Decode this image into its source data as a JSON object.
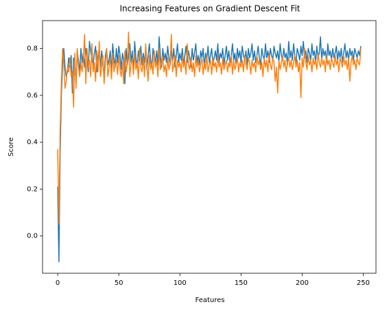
{
  "chart_data": {
    "type": "line",
    "title": "Increasing Features on Gradient Descent Fit",
    "x_label": "Features",
    "y_label": "Score",
    "x": [
      0,
      1,
      2,
      3,
      4,
      5,
      6,
      7,
      8,
      9,
      10,
      11,
      12,
      13,
      14,
      15,
      16,
      17,
      18,
      19,
      20,
      21,
      22,
      23,
      24,
      25,
      26,
      27,
      28,
      29,
      30,
      31,
      32,
      33,
      34,
      35,
      36,
      37,
      38,
      39,
      40,
      41,
      42,
      43,
      44,
      45,
      46,
      47,
      48,
      49,
      50,
      51,
      52,
      53,
      54,
      55,
      56,
      57,
      58,
      59,
      60,
      61,
      62,
      63,
      64,
      65,
      66,
      67,
      68,
      69,
      70,
      71,
      72,
      73,
      74,
      75,
      76,
      77,
      78,
      79,
      80,
      81,
      82,
      83,
      84,
      85,
      86,
      87,
      88,
      89,
      90,
      91,
      92,
      93,
      94,
      95,
      96,
      97,
      98,
      99,
      100,
      101,
      102,
      103,
      104,
      105,
      106,
      107,
      108,
      109,
      110,
      111,
      112,
      113,
      114,
      115,
      116,
      117,
      118,
      119,
      120,
      121,
      122,
      123,
      124,
      125,
      126,
      127,
      128,
      129,
      130,
      131,
      132,
      133,
      134,
      135,
      136,
      137,
      138,
      139,
      140,
      141,
      142,
      143,
      144,
      145,
      146,
      147,
      148,
      149,
      150,
      151,
      152,
      153,
      154,
      155,
      156,
      157,
      158,
      159,
      160,
      161,
      162,
      163,
      164,
      165,
      166,
      167,
      168,
      169,
      170,
      171,
      172,
      173,
      174,
      175,
      176,
      177,
      178,
      179,
      180,
      181,
      182,
      183,
      184,
      185,
      186,
      187,
      188,
      189,
      190,
      191,
      192,
      193,
      194,
      195,
      196,
      197,
      198,
      199,
      200,
      201,
      202,
      203,
      204,
      205,
      206,
      207,
      208,
      209,
      210,
      211,
      212,
      213,
      214,
      215,
      216,
      217,
      218,
      219,
      220,
      221,
      222,
      223,
      224,
      225,
      226,
      227,
      228,
      229,
      230,
      231,
      232,
      233,
      234,
      235,
      236,
      237,
      238,
      239,
      240,
      241,
      242,
      243,
      244,
      245,
      246,
      247,
      248
    ],
    "series": [
      {
        "color": "#1f77b4",
        "values": [
          0.21,
          -0.11,
          0.35,
          0.6,
          0.73,
          0.8,
          0.72,
          0.68,
          0.7,
          0.76,
          0.72,
          0.77,
          0.61,
          0.76,
          0.74,
          0.65,
          0.79,
          0.75,
          0.7,
          0.8,
          0.74,
          0.78,
          0.72,
          0.8,
          0.76,
          0.7,
          0.83,
          0.79,
          0.75,
          0.73,
          0.78,
          0.81,
          0.7,
          0.76,
          0.8,
          0.72,
          0.79,
          0.74,
          0.68,
          0.77,
          0.8,
          0.73,
          0.75,
          0.79,
          0.7,
          0.82,
          0.76,
          0.72,
          0.8,
          0.74,
          0.81,
          0.77,
          0.71,
          0.78,
          0.75,
          0.65,
          0.8,
          0.73,
          0.77,
          0.82,
          0.74,
          0.79,
          0.7,
          0.83,
          0.76,
          0.72,
          0.79,
          0.75,
          0.81,
          0.73,
          0.78,
          0.74,
          0.8,
          0.71,
          0.77,
          0.82,
          0.75,
          0.72,
          0.8,
          0.76,
          0.74,
          0.79,
          0.73,
          0.85,
          0.77,
          0.72,
          0.8,
          0.75,
          0.78,
          0.74,
          0.81,
          0.76,
          0.73,
          0.79,
          0.75,
          0.8,
          0.72,
          0.77,
          0.82,
          0.74,
          0.78,
          0.75,
          0.8,
          0.73,
          0.77,
          0.81,
          0.74,
          0.79,
          0.76,
          0.72,
          0.8,
          0.75,
          0.78,
          0.82,
          0.74,
          0.77,
          0.73,
          0.79,
          0.76,
          0.8,
          0.72,
          0.78,
          0.75,
          0.81,
          0.74,
          0.77,
          0.8,
          0.73,
          0.76,
          0.79,
          0.75,
          0.82,
          0.74,
          0.78,
          0.76,
          0.8,
          0.73,
          0.77,
          0.81,
          0.75,
          0.79,
          0.74,
          0.77,
          0.82,
          0.75,
          0.78,
          0.73,
          0.8,
          0.76,
          0.79,
          0.74,
          0.81,
          0.77,
          0.75,
          0.79,
          0.73,
          0.8,
          0.76,
          0.78,
          0.82,
          0.75,
          0.79,
          0.74,
          0.77,
          0.81,
          0.76,
          0.73,
          0.8,
          0.77,
          0.75,
          0.82,
          0.76,
          0.79,
          0.74,
          0.8,
          0.77,
          0.75,
          0.81,
          0.78,
          0.76,
          0.79,
          0.74,
          0.82,
          0.77,
          0.75,
          0.8,
          0.76,
          0.78,
          0.73,
          0.83,
          0.76,
          0.79,
          0.75,
          0.82,
          0.77,
          0.74,
          0.8,
          0.78,
          0.75,
          0.81,
          0.77,
          0.83,
          0.76,
          0.79,
          0.74,
          0.8,
          0.78,
          0.75,
          0.82,
          0.77,
          0.79,
          0.74,
          0.81,
          0.76,
          0.78,
          0.85,
          0.75,
          0.8,
          0.77,
          0.79,
          0.74,
          0.82,
          0.77,
          0.79,
          0.75,
          0.8,
          0.76,
          0.78,
          0.81,
          0.75,
          0.79,
          0.76,
          0.8,
          0.74,
          0.78,
          0.82,
          0.76,
          0.79,
          0.75,
          0.8,
          0.77,
          0.79,
          0.75,
          0.8,
          0.78,
          0.76,
          0.79,
          0.77,
          0.81
        ]
      },
      {
        "color": "#ff7f0e",
        "values": [
          0.37,
          0.05,
          0.45,
          0.65,
          0.8,
          0.74,
          0.63,
          0.66,
          0.72,
          0.7,
          0.76,
          0.68,
          0.7,
          0.55,
          0.78,
          0.63,
          0.8,
          0.72,
          0.68,
          0.74,
          0.7,
          0.76,
          0.86,
          0.65,
          0.8,
          0.72,
          0.75,
          0.68,
          0.82,
          0.7,
          0.74,
          0.66,
          0.79,
          0.7,
          0.83,
          0.68,
          0.72,
          0.77,
          0.65,
          0.74,
          0.8,
          0.68,
          0.72,
          0.76,
          0.67,
          0.78,
          0.7,
          0.73,
          0.75,
          0.69,
          0.77,
          0.71,
          0.68,
          0.74,
          0.65,
          0.79,
          0.7,
          0.74,
          0.87,
          0.68,
          0.73,
          0.76,
          0.69,
          0.78,
          0.71,
          0.74,
          0.67,
          0.8,
          0.72,
          0.7,
          0.76,
          0.68,
          0.82,
          0.73,
          0.66,
          0.77,
          0.71,
          0.74,
          0.69,
          0.79,
          0.72,
          0.75,
          0.68,
          0.8,
          0.71,
          0.74,
          0.77,
          0.7,
          0.73,
          0.68,
          0.76,
          0.71,
          0.74,
          0.86,
          0.7,
          0.73,
          0.77,
          0.68,
          0.75,
          0.72,
          0.74,
          0.7,
          0.77,
          0.72,
          0.75,
          0.69,
          0.82,
          0.73,
          0.71,
          0.76,
          0.7,
          0.74,
          0.68,
          0.77,
          0.72,
          0.75,
          0.7,
          0.73,
          0.76,
          0.69,
          0.74,
          0.71,
          0.77,
          0.7,
          0.73,
          0.75,
          0.69,
          0.76,
          0.72,
          0.74,
          0.7,
          0.77,
          0.72,
          0.74,
          0.69,
          0.76,
          0.71,
          0.73,
          0.75,
          0.7,
          0.74,
          0.72,
          0.77,
          0.69,
          0.75,
          0.71,
          0.73,
          0.76,
          0.7,
          0.74,
          0.72,
          0.75,
          0.7,
          0.77,
          0.73,
          0.71,
          0.76,
          0.74,
          0.69,
          0.75,
          0.72,
          0.74,
          0.7,
          0.77,
          0.73,
          0.75,
          0.71,
          0.74,
          0.68,
          0.76,
          0.72,
          0.75,
          0.7,
          0.78,
          0.73,
          0.71,
          0.76,
          0.74,
          0.66,
          0.72,
          0.61,
          0.75,
          0.71,
          0.74,
          0.77,
          0.72,
          0.75,
          0.7,
          0.74,
          0.76,
          0.72,
          0.75,
          0.71,
          0.74,
          0.77,
          0.72,
          0.75,
          0.7,
          0.74,
          0.59,
          0.76,
          0.72,
          0.8,
          0.74,
          0.71,
          0.77,
          0.73,
          0.75,
          0.7,
          0.76,
          0.73,
          0.75,
          0.71,
          0.78,
          0.74,
          0.72,
          0.76,
          0.73,
          0.75,
          0.7,
          0.77,
          0.73,
          0.75,
          0.71,
          0.76,
          0.74,
          0.72,
          0.77,
          0.73,
          0.75,
          0.7,
          0.76,
          0.74,
          0.72,
          0.77,
          0.73,
          0.75,
          0.71,
          0.76,
          0.66,
          0.74,
          0.77,
          0.73,
          0.75,
          0.71,
          0.76,
          0.74,
          0.73,
          0.8
        ]
      }
    ],
    "xlim": [
      -12.4,
      260.4
    ],
    "xticks": [
      0,
      50,
      100,
      150,
      200,
      250
    ],
    "ylim": [
      -0.159,
      0.919
    ],
    "yticks": [
      {
        "value": 0,
        "label": "0.0"
      },
      0.2,
      0.4,
      0.6,
      0.8
    ]
  }
}
